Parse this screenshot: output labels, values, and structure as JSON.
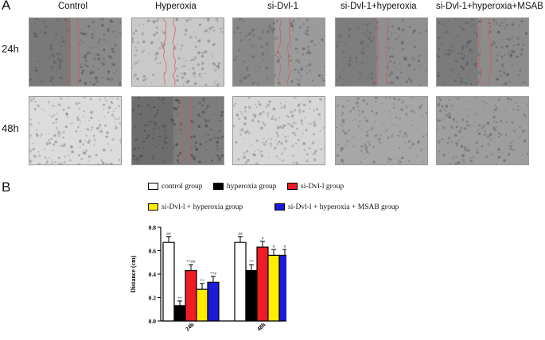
{
  "panel_labels": {
    "a": "A",
    "b": "B"
  },
  "column_headers": [
    "Control",
    "Hyperoxia",
    "si-Dvl-1",
    "si-Dvl-1+hyperoxia",
    "si-Dvl-1+hyperoxia+MSAB"
  ],
  "row_labels": [
    "24h",
    "48h"
  ],
  "legend": {
    "control": "control group",
    "hyperoxia": "hyperoxia group",
    "sidvl": "si-Dvl-l group",
    "sidvl_hyp": "si-Dvl-l + hyperoxia group",
    "sidvl_hyp_msab": "si-Dvl-l + hyperoxia + MSAB group"
  },
  "colors": {
    "control": "#ffffff",
    "hyperoxia": "#000000",
    "sidvl": "#ee1c24",
    "sidvl_hyp": "#ffec00",
    "sidvl_hyp_msab": "#1a1ad8",
    "wound_edge": "#e05050"
  },
  "chart_data": {
    "type": "bar",
    "ylabel": "Distance (cm)",
    "ylim": [
      0,
      0.8
    ],
    "yticks": [
      "0.0",
      "0.2",
      "0.4",
      "0.6",
      "0.8"
    ],
    "categories": [
      "24h",
      "48h"
    ],
    "series": [
      {
        "name": "control group",
        "values": [
          0.67,
          0.67
        ],
        "errors": [
          0.05,
          0.05
        ],
        "marks": [
          "##",
          "##"
        ]
      },
      {
        "name": "hyperoxia group",
        "values": [
          0.13,
          0.43
        ],
        "errors": [
          0.04,
          0.05
        ],
        "marks": [
          "**",
          "**"
        ]
      },
      {
        "name": "si-Dvl-l group",
        "values": [
          0.43,
          0.63
        ],
        "errors": [
          0.05,
          0.05
        ],
        "marks": [
          "**##",
          "#"
        ]
      },
      {
        "name": "si-Dvl-l + hyperoxia group",
        "values": [
          0.27,
          0.56
        ],
        "errors": [
          0.05,
          0.05
        ],
        "marks": [
          "**",
          "#"
        ]
      },
      {
        "name": "si-Dvl-l + hyperoxia + MSAB group",
        "values": [
          0.33,
          0.56
        ],
        "errors": [
          0.05,
          0.05
        ],
        "marks": [
          "**#",
          "#"
        ]
      }
    ]
  }
}
